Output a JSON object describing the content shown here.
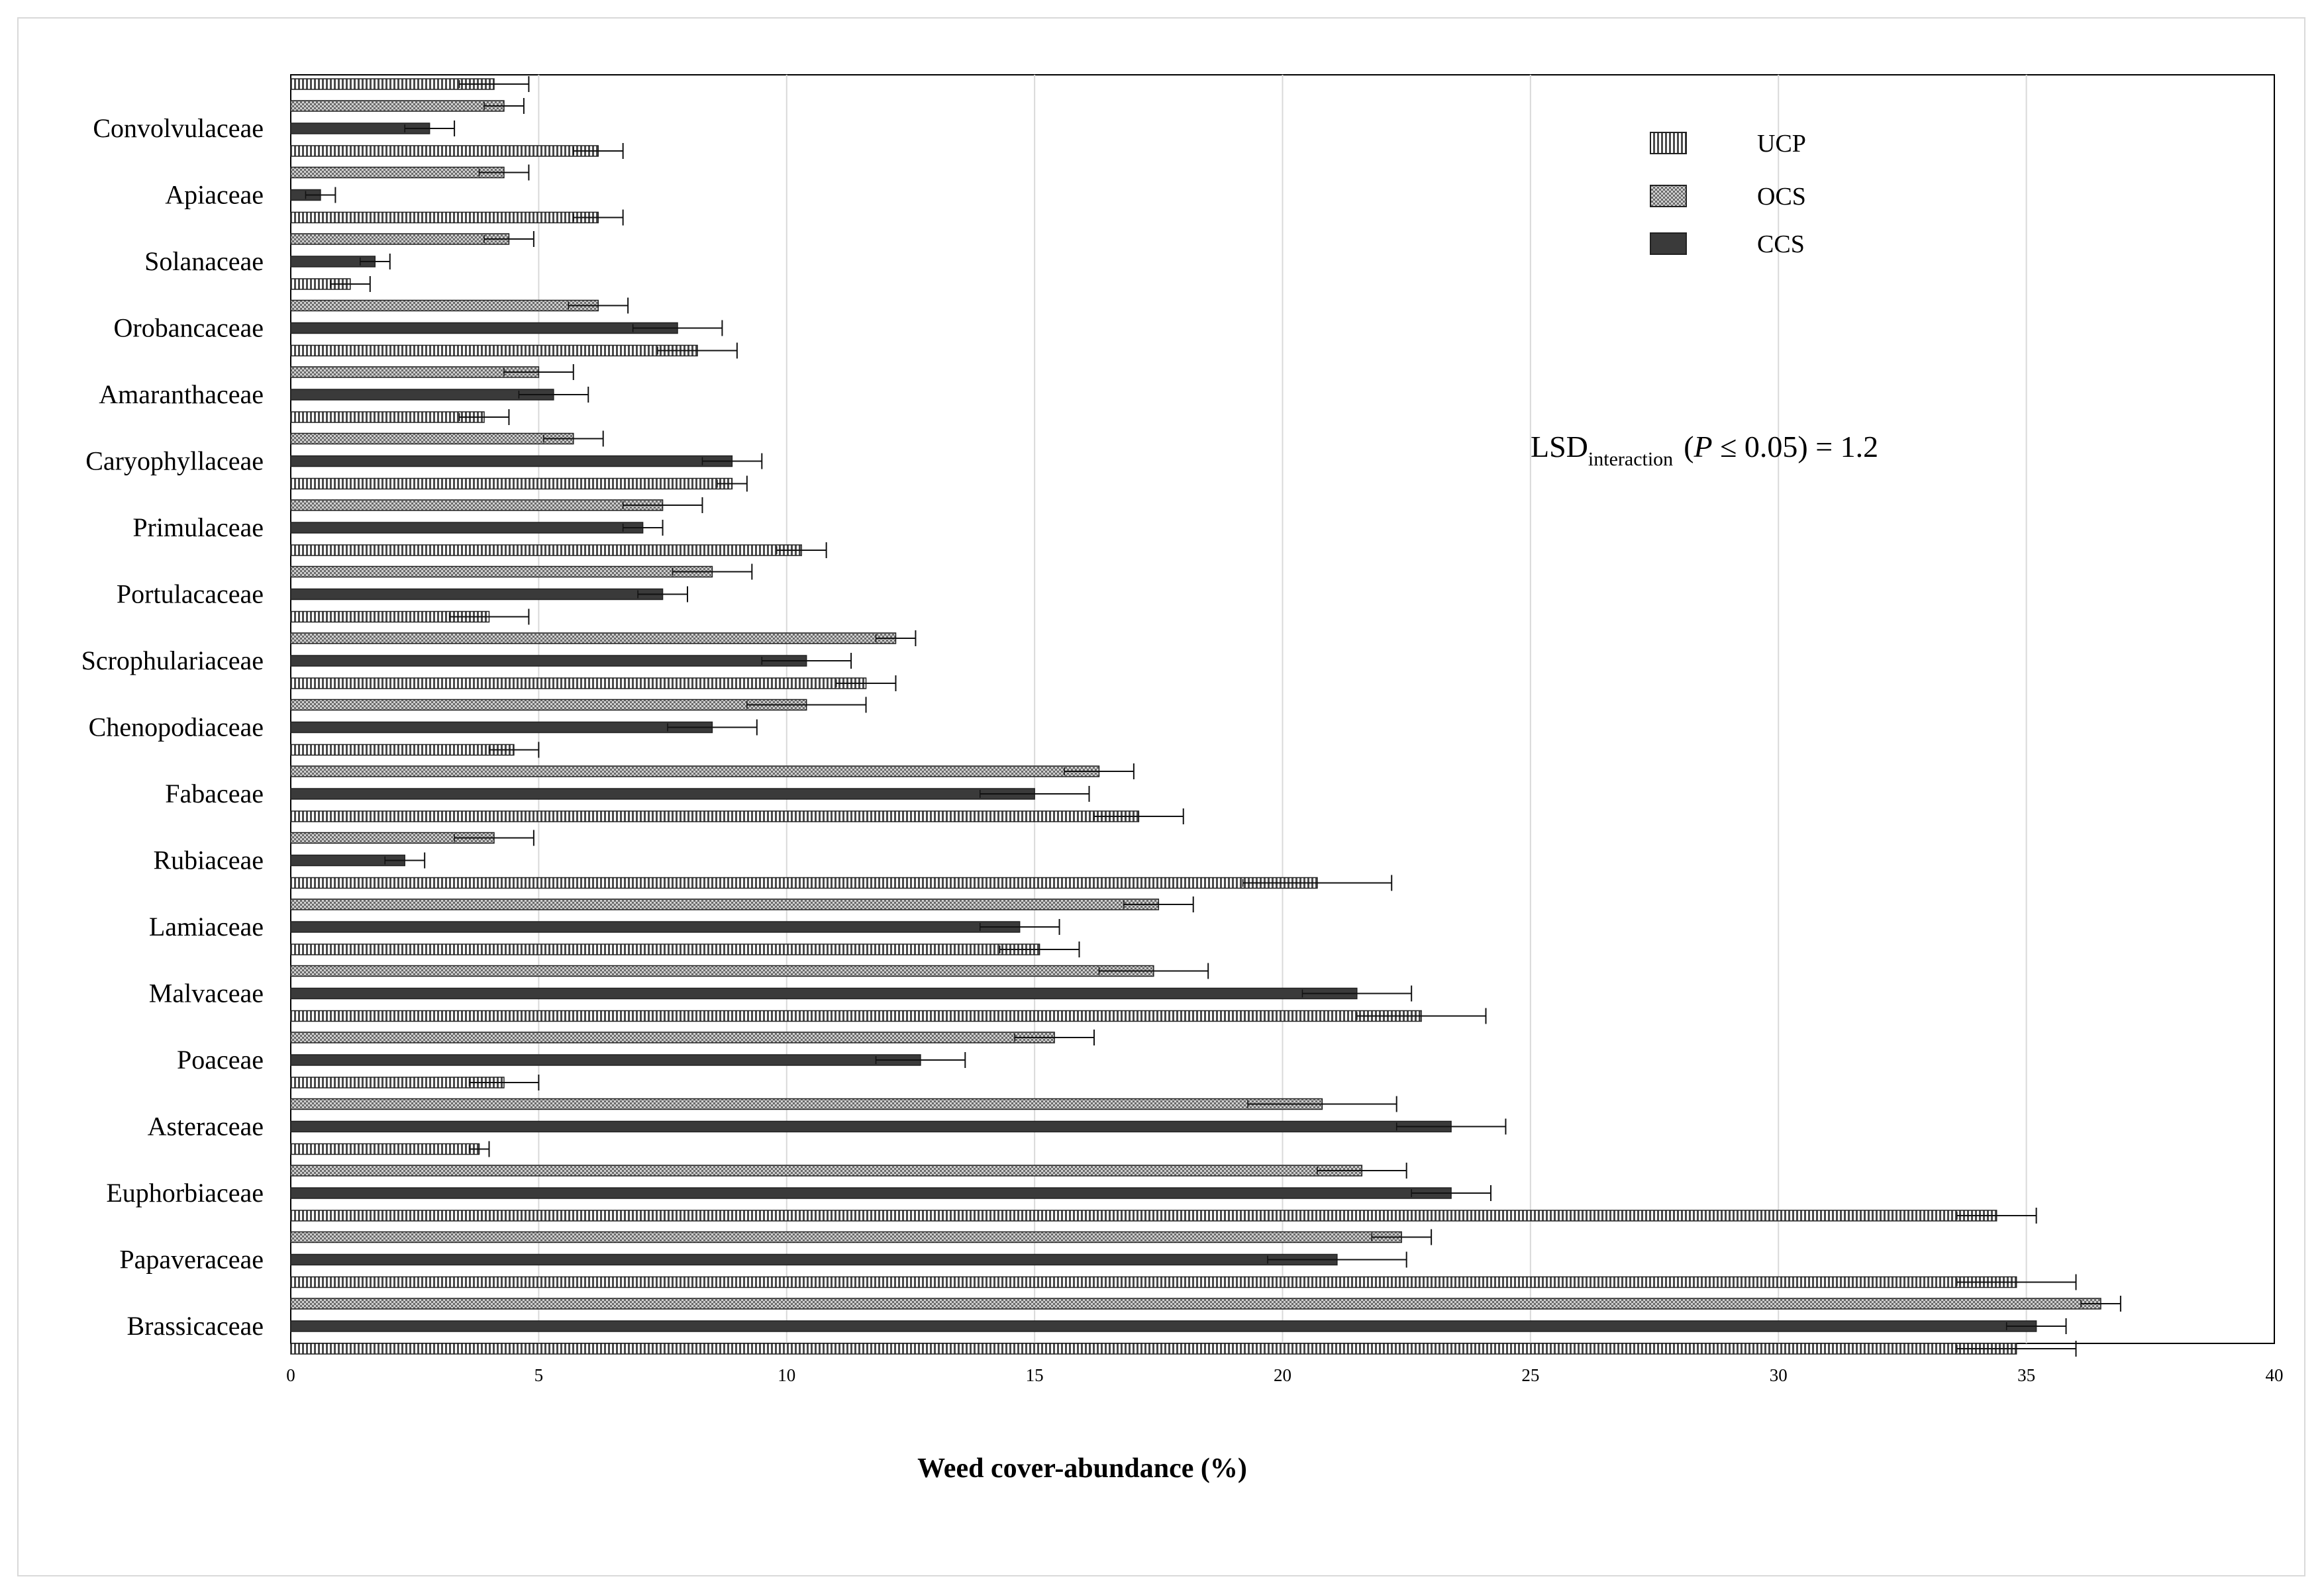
{
  "chart_data": {
    "type": "bar",
    "orientation": "horizontal",
    "title": "",
    "xlabel": "Weed cover-abundance (%)",
    "ylabel": "",
    "xlim": [
      0,
      40
    ],
    "xticks": [
      0,
      5,
      10,
      15,
      20,
      25,
      30,
      35,
      40
    ],
    "grid": "vertical",
    "legend_position": "top-right",
    "annotation": {
      "prefix": "LSD",
      "subscript": "interaction",
      "condition_open": "(",
      "condition_var": "P",
      "condition_rest": " ≤ 0.05) = 1.2"
    },
    "categories": [
      "Brassicaceae",
      "Papaveraceae",
      "Euphorbiaceae",
      "Asteraceae",
      "Poaceae",
      "Malvaceae",
      "Lamiaceae",
      "Rubiaceae",
      "Fabaceae",
      "Chenopodiaceae",
      "Scrophulariaceae",
      "Portulacaceae",
      "Primulaceae",
      "Caryophyllaceae",
      "Amaranthaceae",
      "Orobancaceae",
      "Solanaceae",
      "Apiaceae",
      "Convolvulaceae"
    ],
    "series": [
      {
        "name": "CCS",
        "pattern": "solid",
        "color": "#3a3a3a",
        "values": [
          35.2,
          21.1,
          23.4,
          23.4,
          12.7,
          21.5,
          14.7,
          2.3,
          15.0,
          8.5,
          10.4,
          7.5,
          7.1,
          8.9,
          5.3,
          7.8,
          1.7,
          0.6,
          2.8
        ],
        "errors": [
          0.6,
          1.4,
          0.8,
          1.1,
          0.9,
          1.1,
          0.8,
          0.4,
          1.1,
          0.9,
          0.9,
          0.5,
          0.4,
          0.6,
          0.7,
          0.9,
          0.3,
          0.3,
          0.5
        ]
      },
      {
        "name": "OCS",
        "pattern": "crosshatch",
        "color": "#7a7a7a",
        "values": [
          36.5,
          22.4,
          21.6,
          20.8,
          15.4,
          17.4,
          17.5,
          4.1,
          16.3,
          10.4,
          12.2,
          8.5,
          7.5,
          5.7,
          5.0,
          6.2,
          4.4,
          4.3,
          4.3
        ],
        "errors": [
          0.4,
          0.6,
          0.9,
          1.5,
          0.8,
          1.1,
          0.7,
          0.8,
          0.7,
          1.2,
          0.4,
          0.8,
          0.8,
          0.6,
          0.7,
          0.6,
          0.5,
          0.5,
          0.4
        ]
      },
      {
        "name": "UCP",
        "pattern": "vertical-lines",
        "color": "#555555",
        "values": [
          34.8,
          34.8,
          34.4,
          3.8,
          4.3,
          22.8,
          15.1,
          20.7,
          17.1,
          4.5,
          11.6,
          4.0,
          10.3,
          8.9,
          3.9,
          8.2,
          1.2,
          6.2,
          6.2
        ],
        "errors": [
          1.2,
          1.2,
          0.8,
          0.2,
          0.7,
          1.3,
          0.8,
          1.5,
          0.9,
          0.5,
          0.6,
          0.8,
          0.5,
          0.3,
          0.5,
          0.8,
          0.4,
          0.5,
          0.5
        ]
      }
    ],
    "top_partial_series": {
      "name": "UCP",
      "value": 4.1,
      "error": 0.7
    },
    "legend_order": [
      "UCP",
      "OCS",
      "CCS"
    ]
  }
}
